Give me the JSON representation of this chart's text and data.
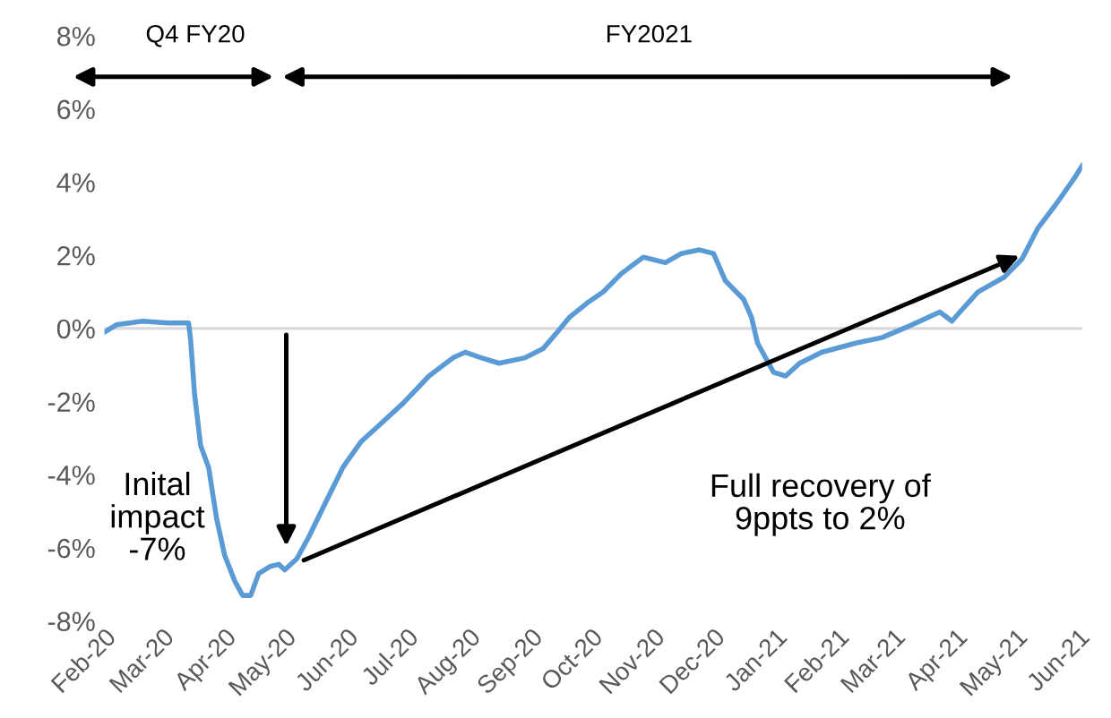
{
  "chart_data": {
    "type": "line",
    "x": [
      "2020-02-01",
      "2020-02-07",
      "2020-02-20",
      "2020-03-04",
      "2020-03-14",
      "2020-03-15",
      "2020-03-17",
      "2020-03-20",
      "2020-03-24",
      "2020-03-28",
      "2020-04-01",
      "2020-04-06",
      "2020-04-10",
      "2020-04-14",
      "2020-04-18",
      "2020-04-24",
      "2020-04-28",
      "2020-05-01",
      "2020-05-07",
      "2020-05-13",
      "2020-05-21",
      "2020-05-30",
      "2020-06-08",
      "2020-06-16",
      "2020-06-29",
      "2020-07-12",
      "2020-07-24",
      "2020-07-30",
      "2020-08-07",
      "2020-08-16",
      "2020-08-29",
      "2020-09-07",
      "2020-09-14",
      "2020-09-20",
      "2020-09-29",
      "2020-10-07",
      "2020-10-16",
      "2020-10-27",
      "2020-11-07",
      "2020-11-15",
      "2020-11-24",
      "2020-12-01",
      "2020-12-07",
      "2020-12-16",
      "2020-12-20",
      "2020-12-23",
      "2020-12-27",
      "2020-12-31",
      "2021-01-06",
      "2021-01-13",
      "2021-01-24",
      "2021-02-10",
      "2021-02-23",
      "2021-03-08",
      "2021-03-24",
      "2021-03-30",
      "2021-04-03",
      "2021-04-12",
      "2021-04-25",
      "2021-05-04",
      "2021-05-12",
      "2021-05-21",
      "2021-05-30",
      "2021-06-03"
    ],
    "series": [
      {
        "color": "#5b9bd5",
        "values": [
          -0.1,
          0.1,
          0.2,
          0.15,
          0.15,
          -0.3,
          -1.8,
          -3.2,
          -3.8,
          -5.2,
          -6.2,
          -6.9,
          -7.3,
          -7.3,
          -6.7,
          -6.5,
          -6.45,
          -6.6,
          -6.3,
          -5.7,
          -4.8,
          -3.8,
          -3.1,
          -2.7,
          -2.05,
          -1.3,
          -0.8,
          -0.65,
          -0.8,
          -0.95,
          -0.8,
          -0.55,
          -0.1,
          0.3,
          0.7,
          1.0,
          1.5,
          1.95,
          1.8,
          2.05,
          2.15,
          2.05,
          1.3,
          0.8,
          0.3,
          -0.4,
          -0.8,
          -1.2,
          -1.3,
          -0.95,
          -0.65,
          -0.4,
          -0.25,
          0.05,
          0.45,
          0.2,
          0.45,
          1.0,
          1.4,
          1.9,
          2.75,
          3.4,
          4.1,
          4.45
        ]
      }
    ],
    "xlim": [
      "2020-02-01",
      "2021-06-03"
    ],
    "xticks": [
      {
        "value": "2020-02-01",
        "label": "Feb-20"
      },
      {
        "value": "2020-03-01",
        "label": "Mar-20"
      },
      {
        "value": "2020-04-01",
        "label": "Apr-20"
      },
      {
        "value": "2020-05-01",
        "label": "May-20"
      },
      {
        "value": "2020-06-01",
        "label": "Jun-20"
      },
      {
        "value": "2020-07-01",
        "label": "Jul-20"
      },
      {
        "value": "2020-08-01",
        "label": "Aug-20"
      },
      {
        "value": "2020-09-01",
        "label": "Sep-20"
      },
      {
        "value": "2020-10-01",
        "label": "Oct-20"
      },
      {
        "value": "2020-11-01",
        "label": "Nov-20"
      },
      {
        "value": "2020-12-01",
        "label": "Dec-20"
      },
      {
        "value": "2021-01-01",
        "label": "Jan-21"
      },
      {
        "value": "2021-02-01",
        "label": "Feb-21"
      },
      {
        "value": "2021-03-01",
        "label": "Mar-21"
      },
      {
        "value": "2021-04-01",
        "label": "Apr-21"
      },
      {
        "value": "2021-05-01",
        "label": "May-21"
      },
      {
        "value": "2021-06-01",
        "label": "Jun-21"
      }
    ],
    "ylim": [
      -8,
      8
    ],
    "yticks": [
      {
        "value": -8,
        "label": "-8%"
      },
      {
        "value": -6,
        "label": "-6%"
      },
      {
        "value": -4,
        "label": "-4%"
      },
      {
        "value": -2,
        "label": "-2%"
      },
      {
        "value": 0,
        "label": "0%"
      },
      {
        "value": 2,
        "label": "2%"
      },
      {
        "value": 4,
        "label": "4%"
      },
      {
        "value": 6,
        "label": "6%"
      },
      {
        "value": 8,
        "label": "8%"
      }
    ],
    "ref_lines": [
      {
        "axis": "y",
        "value": 0,
        "label": null,
        "color": "#d9d9d9"
      }
    ],
    "annotations": [
      "Q4 FY20",
      "FY2021",
      "Inital\nimpact\n-7%",
      "Full recovery of\n9ppts to 2%"
    ],
    "grid": false,
    "legend": false,
    "marker": "none",
    "line_style": "solid"
  }
}
